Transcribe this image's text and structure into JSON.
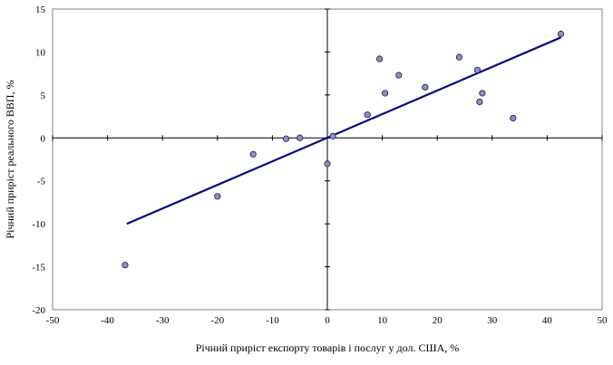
{
  "chart_data": {
    "type": "scatter",
    "title": "",
    "xlabel": "Річний приріст експорту товарів і послуг у дол. США, %",
    "ylabel": "Річний приріст реального ВВП, %",
    "xlim": [
      -50,
      50
    ],
    "ylim": [
      -20,
      15
    ],
    "xticks": [
      -50,
      -40,
      -30,
      -20,
      -10,
      0,
      10,
      20,
      30,
      40,
      50
    ],
    "yticks": [
      -20,
      -15,
      -10,
      -5,
      0,
      5,
      10,
      15
    ],
    "grid": false,
    "legend": "none",
    "point_color": "#8a8fc9",
    "line_color": "#0a0a80",
    "points": [
      {
        "x": -36.8,
        "y": -14.8
      },
      {
        "x": -20.0,
        "y": -6.8
      },
      {
        "x": -13.5,
        "y": -1.9
      },
      {
        "x": -7.5,
        "y": -0.1
      },
      {
        "x": -5.0,
        "y": 0.0
      },
      {
        "x": 0.0,
        "y": -3.0
      },
      {
        "x": 1.0,
        "y": 0.2
      },
      {
        "x": 7.3,
        "y": 2.7
      },
      {
        "x": 9.5,
        "y": 9.2
      },
      {
        "x": 10.5,
        "y": 5.2
      },
      {
        "x": 13.0,
        "y": 7.3
      },
      {
        "x": 17.8,
        "y": 5.9
      },
      {
        "x": 24.0,
        "y": 9.4
      },
      {
        "x": 27.3,
        "y": 7.9
      },
      {
        "x": 27.7,
        "y": 4.2
      },
      {
        "x": 28.2,
        "y": 5.2
      },
      {
        "x": 33.8,
        "y": 2.3
      },
      {
        "x": 42.5,
        "y": 12.1
      }
    ],
    "trendline": [
      {
        "x": -36.5,
        "y": -10.0
      },
      {
        "x": 42.5,
        "y": 11.7
      }
    ]
  }
}
